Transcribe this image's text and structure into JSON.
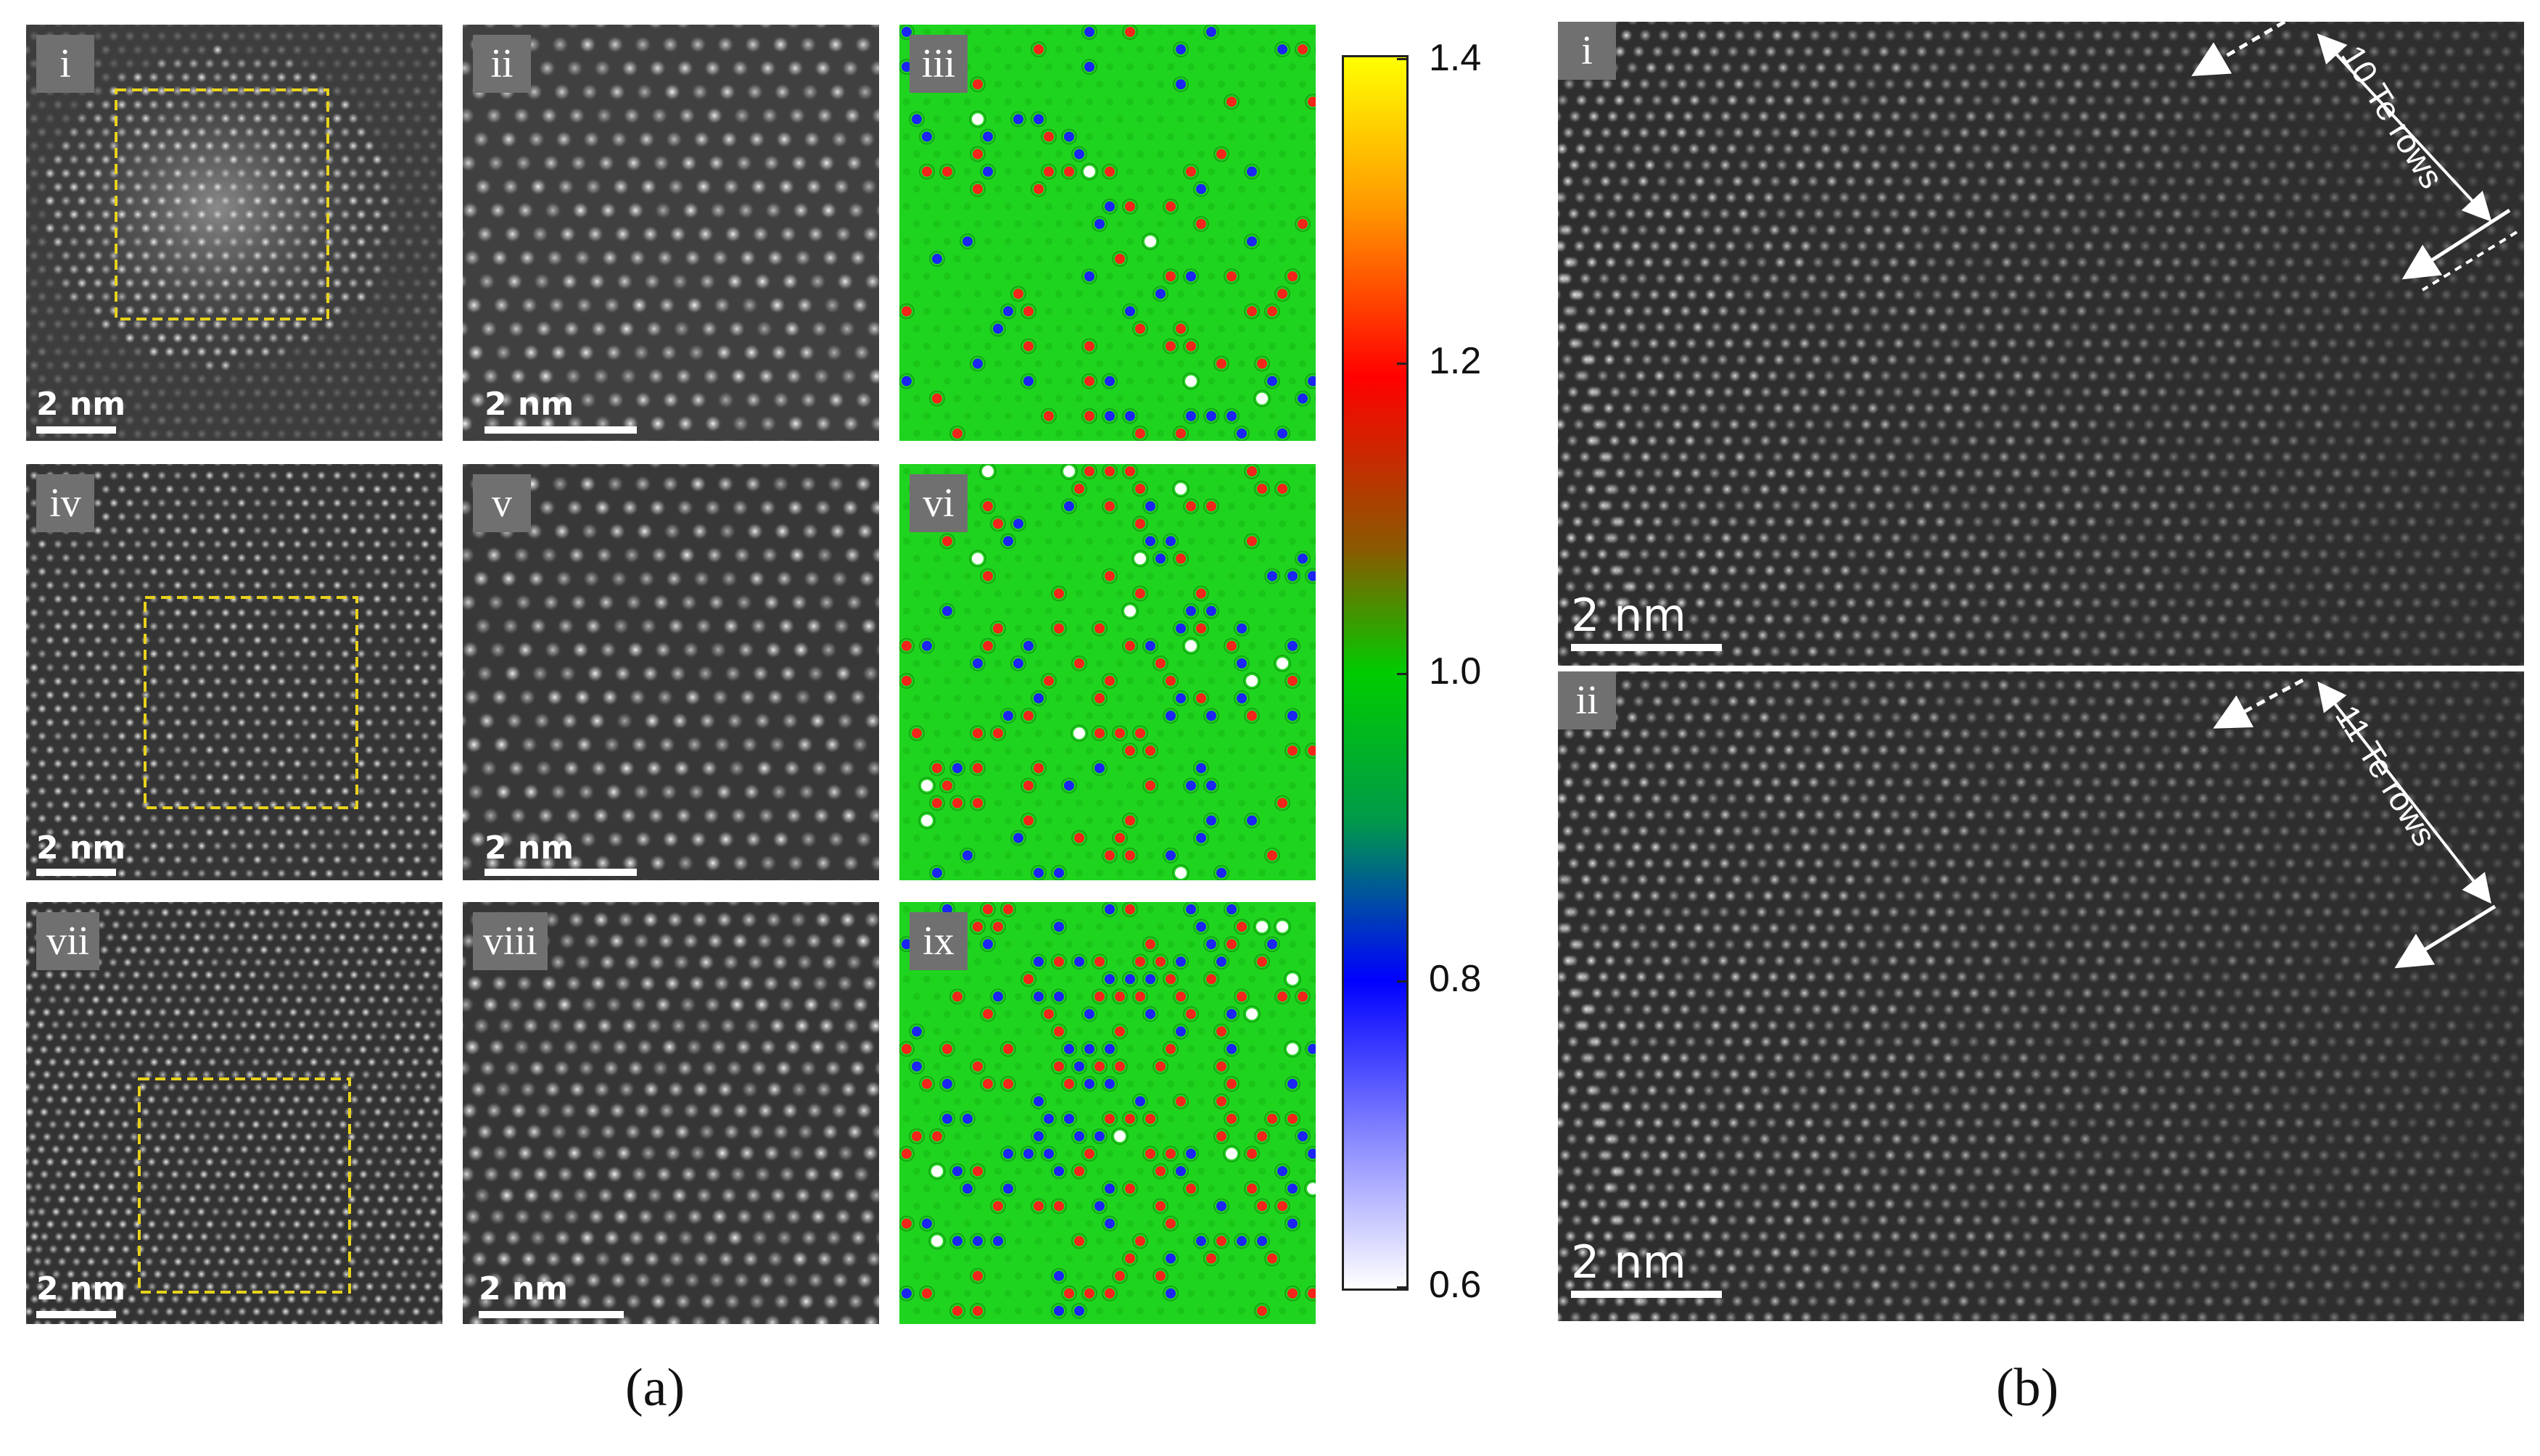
{
  "figure": {
    "caption_a": "(a)",
    "caption_b": "(b)"
  },
  "panel_a": {
    "tiles": [
      {
        "id": "i",
        "label": "i",
        "scalebar": "2 nm",
        "kind": "overview",
        "roi": true
      },
      {
        "id": "ii",
        "label": "ii",
        "scalebar": "2 nm",
        "kind": "zoom"
      },
      {
        "id": "iii",
        "label": "iii",
        "kind": "map"
      },
      {
        "id": "iv",
        "label": "iv",
        "scalebar": "2 nm",
        "kind": "overview",
        "roi": true
      },
      {
        "id": "v",
        "label": "v",
        "scalebar": "2 nm",
        "kind": "zoom"
      },
      {
        "id": "vi",
        "label": "vi",
        "kind": "map"
      },
      {
        "id": "vii",
        "label": "vii",
        "scalebar": "2 nm",
        "kind": "overview",
        "roi": true
      },
      {
        "id": "viii",
        "label": "viii",
        "scalebar": "2 nm",
        "kind": "zoom"
      },
      {
        "id": "ix",
        "label": "ix",
        "kind": "map"
      }
    ],
    "colorbar": {
      "ticks": [
        "1.4",
        "1.2",
        "1.0",
        "0.8",
        "0.6"
      ],
      "range": [
        0.6,
        1.4
      ],
      "colors": [
        "#ffff00",
        "#ff8c00",
        "#ff0000",
        "#00aa00",
        "#00dd00",
        "#0000ff",
        "#ffffff"
      ]
    },
    "roi_color": "#e8d21a"
  },
  "panel_b": {
    "tiles": [
      {
        "id": "b-i",
        "label": "i",
        "scalebar": "2 nm",
        "annotation": "10 Te rows"
      },
      {
        "id": "b-ii",
        "label": "ii",
        "scalebar": "2 nm",
        "annotation": "11 Te rows"
      }
    ]
  },
  "colors": {
    "map_background": "#1fd41f",
    "atom_red": "#ff1a1a",
    "atom_blue": "#1a1aff",
    "atom_white": "#ffffff"
  }
}
